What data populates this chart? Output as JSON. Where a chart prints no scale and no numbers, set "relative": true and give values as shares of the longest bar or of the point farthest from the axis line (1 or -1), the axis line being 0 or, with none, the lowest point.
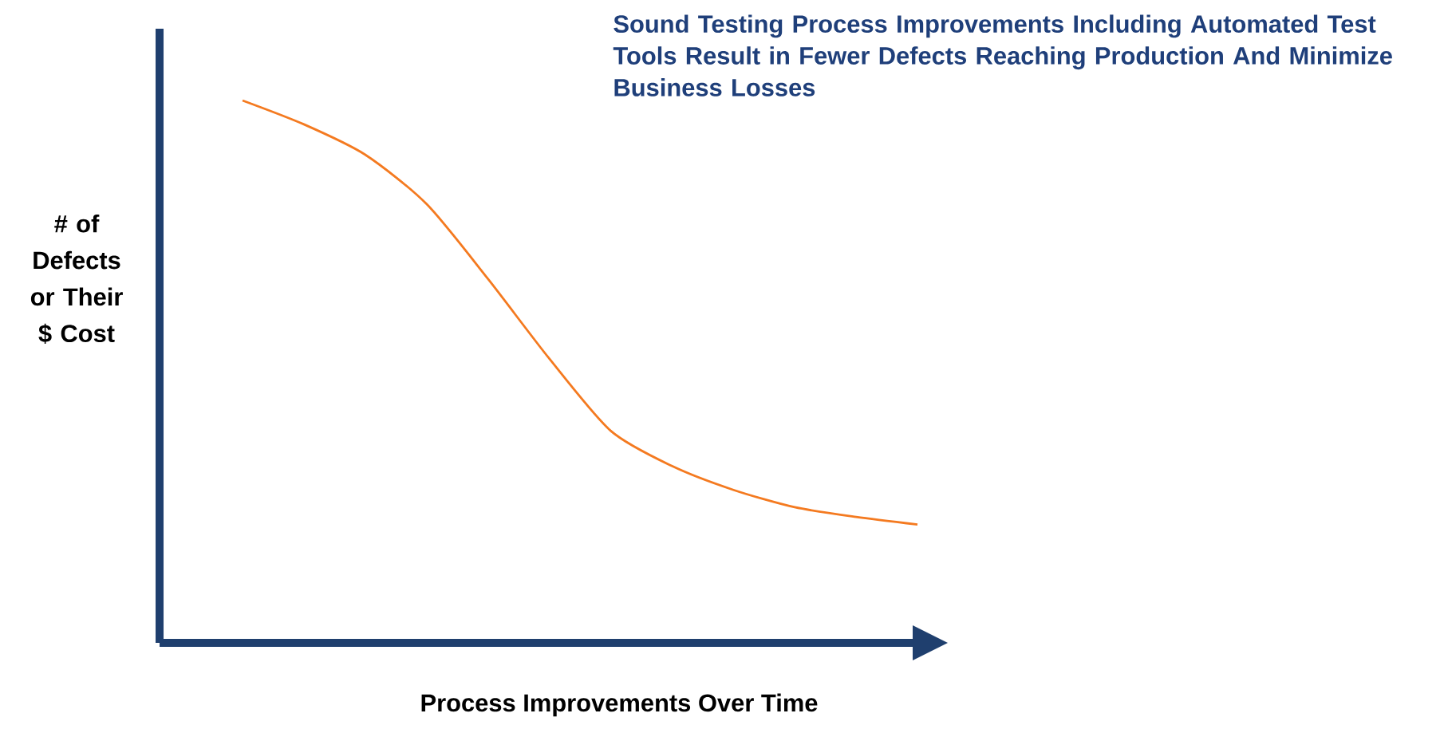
{
  "chart_data": {
    "type": "line",
    "title": "Sound Testing Process Improvements Including Automated Test Tools Result in Fewer Defects Reaching Production And Minimize Business Losses",
    "xlabel": "Process Improvements Over Time",
    "ylabel": "# of Defects or Their $ Cost",
    "relative": true,
    "categories": [
      null,
      null,
      null,
      null,
      null,
      null,
      null,
      null,
      null,
      null,
      null,
      null
    ],
    "values": [
      1.0,
      0.956,
      0.9,
      0.809,
      0.671,
      0.524,
      0.391,
      0.326,
      0.282,
      0.25,
      0.232,
      0.218
    ],
    "color": "#f47a20"
  }
}
